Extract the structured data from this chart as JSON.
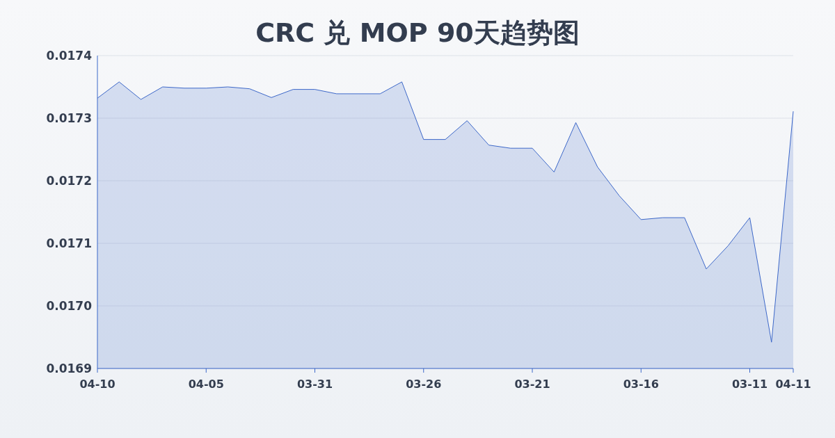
{
  "chart_data": {
    "type": "area",
    "title": "CRC 兑 MOP 90天趋势图",
    "categories": [
      "04-10",
      null,
      null,
      null,
      null,
      "04-05",
      null,
      null,
      null,
      null,
      "03-31",
      null,
      null,
      null,
      null,
      "03-26",
      null,
      null,
      null,
      null,
      "03-21",
      null,
      null,
      null,
      null,
      "03-16",
      null,
      null,
      null,
      null,
      "03-11",
      null,
      "04-11"
    ],
    "series": [
      {
        "color": "#3d68c9",
        "values": [
          0.017332,
          0.017358,
          0.01733,
          0.01735,
          0.017348,
          0.017348,
          0.01735,
          0.017347,
          0.017333,
          0.017346,
          0.017346,
          0.017339,
          0.017339,
          0.017339,
          0.017358,
          0.017266,
          0.017266,
          0.017296,
          0.017257,
          0.017252,
          0.017252,
          0.017214,
          0.017293,
          0.017222,
          0.017176,
          0.017138,
          0.017141,
          0.017141,
          0.017059,
          0.017096,
          0.017141,
          0.016942,
          0.017311
        ]
      }
    ],
    "ylim": [
      0.0169,
      0.0174
    ],
    "yticks": [
      {
        "value": 0.0169,
        "label": "0.0169"
      },
      {
        "value": 0.017,
        "label": "0.0170"
      },
      {
        "value": 0.0171,
        "label": "0.0171"
      },
      {
        "value": 0.0172,
        "label": "0.0172"
      },
      {
        "value": 0.0173,
        "label": "0.0173"
      },
      {
        "value": 0.0174,
        "label": "0.0174"
      }
    ],
    "grid": "y"
  }
}
